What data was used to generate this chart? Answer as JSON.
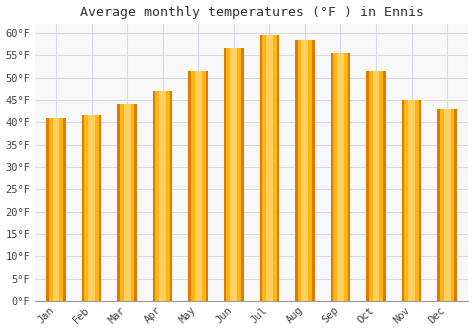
{
  "title": "Average monthly temperatures (°F ) in Ennis",
  "months": [
    "Jan",
    "Feb",
    "Mar",
    "Apr",
    "May",
    "Jun",
    "Jul",
    "Aug",
    "Sep",
    "Oct",
    "Nov",
    "Dec"
  ],
  "values": [
    41,
    41.5,
    44,
    47,
    51.5,
    56.5,
    59.5,
    58.5,
    55.5,
    51.5,
    45,
    43
  ],
  "bar_color_main": "#FDB515",
  "bar_color_edge": "#E07B00",
  "bar_color_light": "#FFD060",
  "ylim": [
    0,
    62
  ],
  "yticks": [
    0,
    5,
    10,
    15,
    20,
    25,
    30,
    35,
    40,
    45,
    50,
    55,
    60
  ],
  "ytick_labels": [
    "0°F",
    "5°F",
    "10°F",
    "15°F",
    "20°F",
    "25°F",
    "30°F",
    "35°F",
    "40°F",
    "45°F",
    "50°F",
    "55°F",
    "60°F"
  ],
  "background_color": "#ffffff",
  "plot_bg_color": "#f8f8f8",
  "grid_color": "#d8d8e8",
  "title_fontsize": 9.5,
  "tick_fontsize": 7.5,
  "bar_width": 0.55
}
